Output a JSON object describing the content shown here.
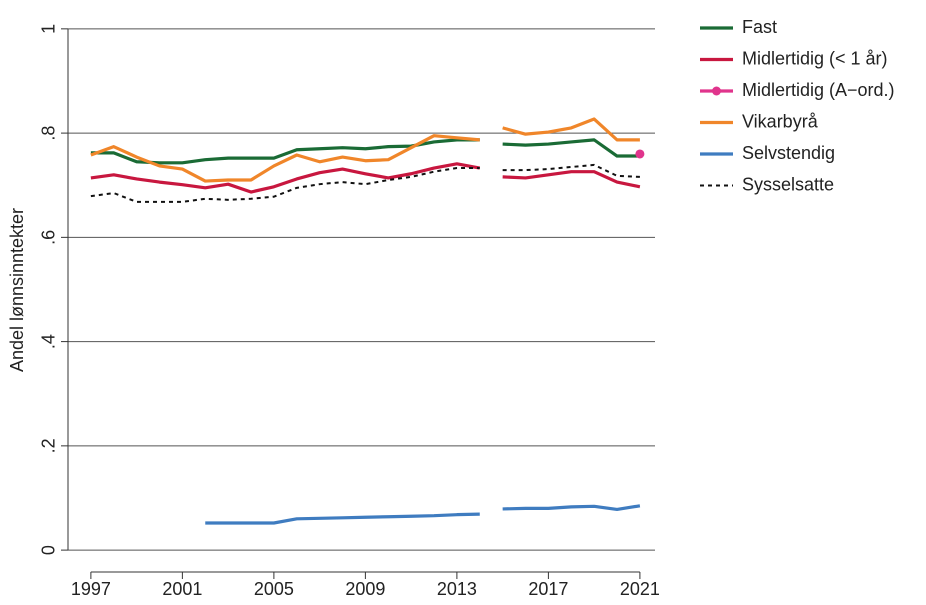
{
  "chart_data": {
    "type": "line",
    "y_label": "Andel lønnsinntekter",
    "x": [
      1997,
      1998,
      1999,
      2000,
      2001,
      2002,
      2003,
      2004,
      2005,
      2006,
      2007,
      2008,
      2009,
      2010,
      2011,
      2012,
      2013,
      2014,
      null,
      2015,
      2016,
      2017,
      2018,
      2019,
      2020,
      2021
    ],
    "series": [
      {
        "name": "Fast",
        "color": "#1a6b35",
        "values": [
          0.762,
          0.762,
          0.745,
          0.743,
          0.743,
          0.749,
          0.752,
          0.752,
          0.752,
          0.768,
          0.77,
          0.772,
          0.77,
          0.774,
          0.775,
          0.783,
          0.787,
          0.787,
          null,
          0.779,
          0.777,
          0.779,
          0.783,
          0.787,
          0.756,
          0.756
        ]
      },
      {
        "name": "Midlertidig (< 1 år)",
        "color": "#c8173f",
        "values": [
          0.714,
          0.72,
          0.712,
          0.706,
          0.701,
          0.695,
          0.702,
          0.687,
          0.697,
          0.712,
          0.724,
          0.731,
          0.722,
          0.714,
          0.722,
          0.733,
          0.741,
          0.733,
          null,
          0.716,
          0.714,
          0.72,
          0.726,
          0.726,
          0.706,
          0.697
        ]
      },
      {
        "name": "Midlertidig (A−ord.)",
        "color": "#e0348c",
        "marker": true,
        "values": [
          null,
          null,
          null,
          null,
          null,
          null,
          null,
          null,
          null,
          null,
          null,
          null,
          null,
          null,
          null,
          null,
          null,
          null,
          null,
          null,
          null,
          null,
          null,
          null,
          null,
          0.76
        ]
      },
      {
        "name": "Vikarbyrå",
        "color": "#f0862a",
        "values": [
          0.758,
          0.774,
          0.754,
          0.737,
          0.731,
          0.708,
          0.71,
          0.71,
          0.737,
          0.758,
          0.745,
          0.754,
          0.747,
          0.749,
          0.772,
          0.795,
          0.791,
          0.787,
          null,
          0.81,
          0.798,
          0.802,
          0.81,
          0.827,
          0.787,
          0.787
        ]
      },
      {
        "name": "Selvstendig",
        "color": "#3f7cc0",
        "values": [
          null,
          null,
          null,
          null,
          null,
          0.052,
          0.052,
          0.052,
          0.052,
          0.06,
          0.061,
          0.062,
          0.063,
          0.064,
          0.065,
          0.066,
          0.068,
          0.069,
          null,
          0.079,
          0.08,
          0.08,
          0.083,
          0.084,
          0.078,
          0.085
        ]
      },
      {
        "name": "Sysselsatte",
        "color": "#111111",
        "dash": true,
        "values": [
          0.679,
          0.685,
          0.668,
          0.668,
          0.668,
          0.674,
          0.672,
          0.674,
          0.678,
          0.695,
          0.702,
          0.706,
          0.702,
          0.71,
          0.716,
          0.726,
          0.733,
          0.733,
          null,
          0.729,
          0.729,
          0.731,
          0.735,
          0.739,
          0.718,
          0.716
        ]
      }
    ],
    "xlim": [
      1996,
      2021.66
    ],
    "xticks": [
      1997,
      2001,
      2005,
      2009,
      2013,
      2017,
      2021
    ],
    "ylim": [
      -0.042,
      1.04
    ],
    "yticks": [
      0,
      {
        "value": 0.2,
        "label": ".2"
      },
      {
        "value": 0.4,
        "label": ".4"
      },
      {
        "value": 0.6,
        "label": ".6"
      },
      {
        "value": 0.8,
        "label": ".8"
      },
      1
    ],
    "grid": true,
    "legend": "right"
  }
}
